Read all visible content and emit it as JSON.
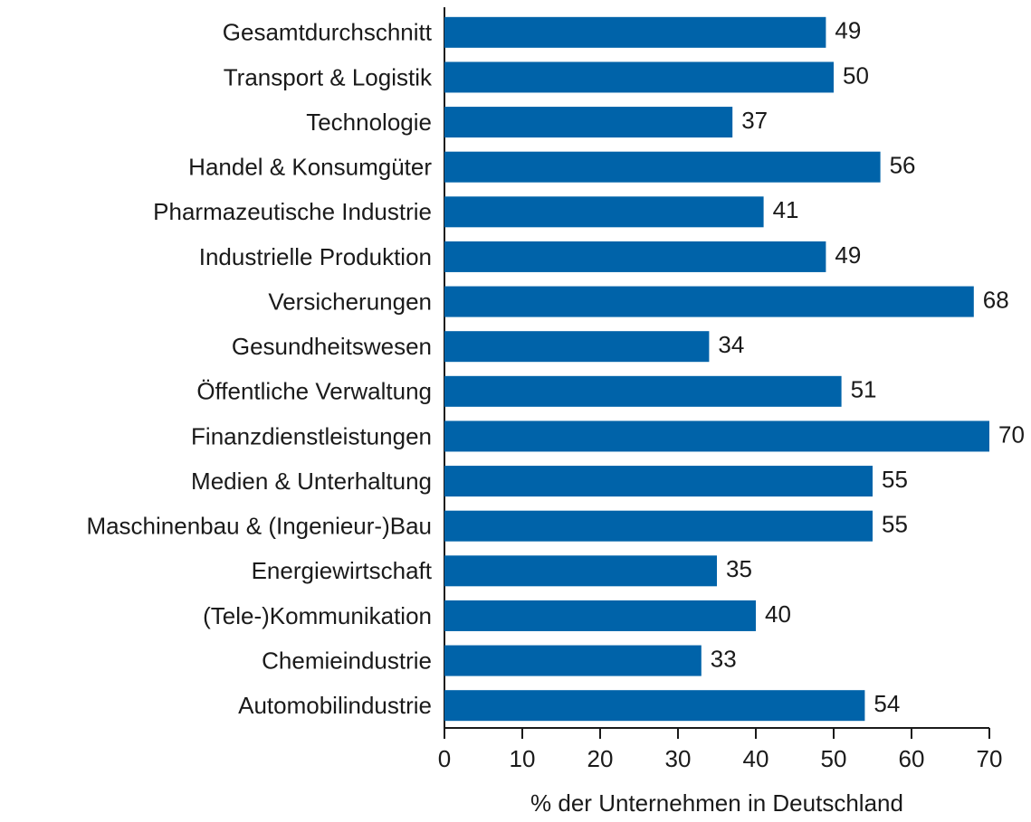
{
  "chart_data": {
    "type": "barh",
    "categories": [
      "Gesamtdurchschnitt",
      "Transport & Logistik",
      "Technologie",
      "Handel & Konsumgüter",
      "Pharmazeutische Industrie",
      "Industrielle Produktion",
      "Versicherungen",
      "Gesundheitswesen",
      "Öffentliche Verwaltung",
      "Finanzdienstleistungen",
      "Medien & Unterhaltung",
      "Maschinenbau & (Ingenieur-)Bau",
      "Energiewirtschaft",
      "(Tele-)Kommunikation",
      "Chemieindustrie",
      "Automobilindustrie"
    ],
    "values": [
      49,
      50,
      37,
      56,
      41,
      49,
      68,
      34,
      51,
      70,
      55,
      55,
      35,
      40,
      33,
      54
    ],
    "color": "#0063a9",
    "xlabel": "% der Unternehmen in Deutschland",
    "xlim": [
      0,
      70
    ],
    "xticks": [
      0,
      10,
      20,
      30,
      40,
      50,
      60,
      70
    ],
    "grid": false
  }
}
